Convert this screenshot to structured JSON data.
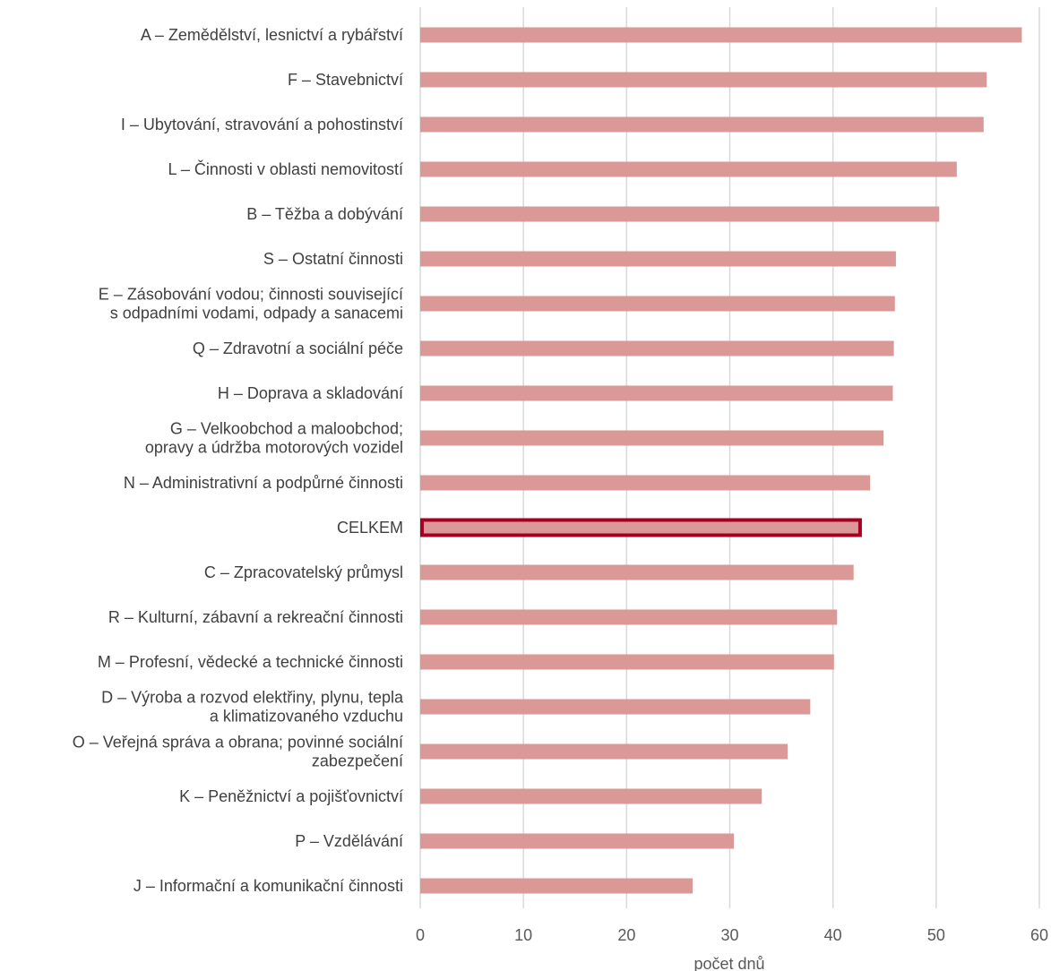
{
  "chart_data": {
    "type": "bar",
    "orientation": "horizontal",
    "xlabel": "počet dnů",
    "xlim": [
      0,
      60
    ],
    "xticks": [
      0,
      10,
      20,
      30,
      40,
      50,
      60
    ],
    "grid": true,
    "highlight_category": "CELKEM",
    "colors": {
      "bar": "#da9896",
      "highlight_border": "#a50021"
    },
    "categories": [
      "A – Zemědělství, lesnictví a rybářství",
      "F – Stavebnictví",
      "I – Ubytování, stravování a pohostinství",
      "L – Činnosti v oblasti nemovitostí",
      "B – Těžba a dobývání",
      "S – Ostatní činnosti",
      "E – Zásobování vodou; činnosti související\ns odpadními vodami, odpady a sanacemi",
      "Q – Zdravotní a sociální péče",
      "H – Doprava a skladování",
      "G – Velkoobchod a maloobchod;\nopravy a údržba motorových vozidel",
      "N – Administrativní a podpůrné činnosti",
      "CELKEM",
      "C – Zpracovatelský průmysl",
      "R – Kulturní, zábavní a rekreační činnosti",
      "M – Profesní, vědecké a technické činnosti",
      "D – Výroba a rozvod elektřiny, plynu, tepla\na klimatizovaného vzduchu",
      "O – Veřejná správa a obrana; povinné sociální\nzabezpečení",
      "K – Peněžnictví a pojišťovnictví",
      "P – Vzdělávání",
      "J – Informační a komunikační činnosti"
    ],
    "values": [
      58.3,
      54.9,
      54.6,
      52.0,
      50.3,
      46.1,
      46.0,
      45.9,
      45.8,
      44.9,
      43.6,
      42.8,
      42.0,
      40.4,
      40.1,
      37.8,
      35.6,
      33.1,
      30.4,
      26.4
    ]
  }
}
